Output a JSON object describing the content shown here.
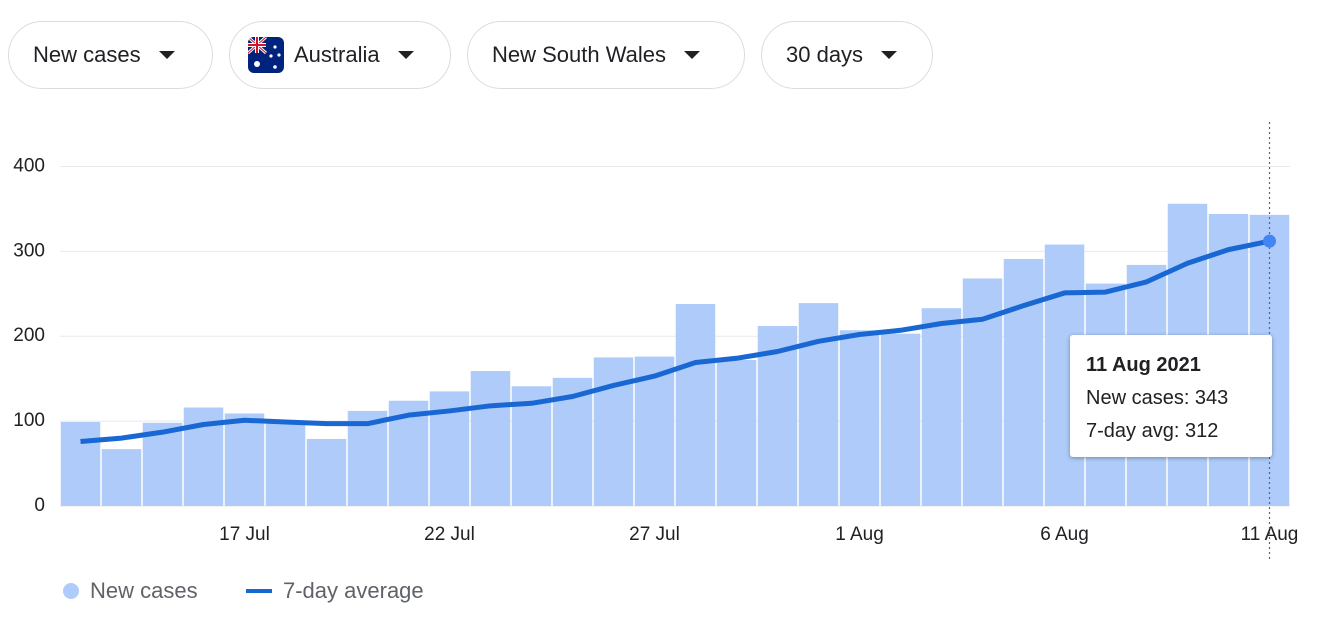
{
  "filters": [
    "New cases",
    "Australia",
    "New South Wales",
    "30 days"
  ],
  "chart_data": {
    "type": "bar",
    "categories": [
      null,
      null,
      null,
      null,
      "17 Jul",
      null,
      null,
      null,
      null,
      "22 Jul",
      null,
      null,
      null,
      null,
      "27 Jul",
      null,
      null,
      null,
      null,
      "1 Aug",
      null,
      null,
      null,
      null,
      "6 Aug",
      null,
      null,
      null,
      null,
      "11 Aug"
    ],
    "series": [
      {
        "name": "New cases",
        "color": "#aecbfa",
        "values": [
          99,
          67,
          98,
          116,
          109,
          100,
          79,
          112,
          124,
          135,
          159,
          141,
          151,
          175,
          176,
          238,
          172,
          212,
          239,
          207,
          203,
          233,
          268,
          291,
          308,
          262,
          284,
          356,
          344,
          343
        ]
      },
      {
        "name": "7-day average",
        "color": "#1967d2",
        "type": "line",
        "values": [
          76,
          80,
          87,
          96,
          101,
          99,
          97,
          97,
          107,
          112,
          118,
          121,
          129,
          142,
          153,
          169,
          174,
          182,
          194,
          202,
          207,
          215,
          220,
          236,
          251,
          252,
          264,
          286,
          302,
          312
        ]
      }
    ],
    "ylim": [
      0,
      450
    ],
    "yticks": [
      0,
      100,
      200,
      300,
      400
    ],
    "grid": true,
    "tooltip": {
      "title": "11 Aug 2021",
      "lines": [
        "New cases: 343",
        "7-day avg: 312"
      ]
    }
  }
}
